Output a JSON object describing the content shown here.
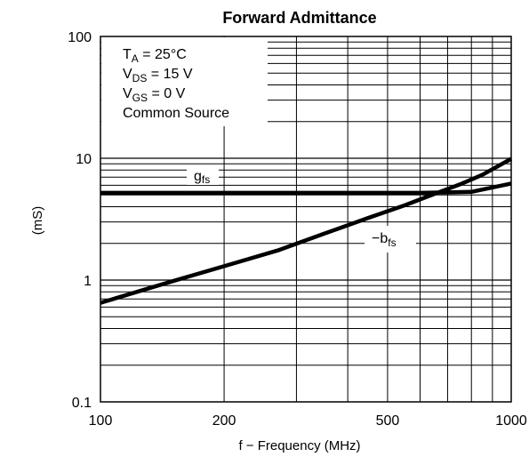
{
  "chart_data": {
    "type": "line",
    "title": "Forward Admittance",
    "xlabel": "f − Frequency (MHz)",
    "ylabel": "(mS)",
    "xscale": "log",
    "yscale": "log",
    "xlim": [
      100,
      1000
    ],
    "ylim": [
      0.1,
      100
    ],
    "xticks": [
      {
        "value": 100,
        "label": "100"
      },
      {
        "value": 200,
        "label": "200"
      },
      {
        "value": 500,
        "label": "500"
      },
      {
        "value": 1000,
        "label": "1000"
      }
    ],
    "yticks": [
      {
        "value": 0.1,
        "label": "0.1"
      },
      {
        "value": 1,
        "label": "1"
      },
      {
        "value": 10,
        "label": "10"
      },
      {
        "value": 100,
        "label": "100"
      }
    ],
    "grid": true,
    "conditions": {
      "ta": {
        "main": "T",
        "sub": "A",
        "rest": " = 25°C"
      },
      "vds": {
        "main": "V",
        "sub": "DS",
        "rest": " = 15 V"
      },
      "vgs": {
        "main": "V",
        "sub": "GS",
        "rest": " = 0 V"
      },
      "common": "Common Source"
    },
    "series": [
      {
        "key": "gfs",
        "label_main": "g",
        "label_sub": "fs",
        "x": [
          100,
          200,
          400,
          600,
          800,
          1000
        ],
        "y": [
          5.2,
          5.2,
          5.2,
          5.2,
          5.3,
          6.2
        ]
      },
      {
        "key": "bfs",
        "label_main": "−b",
        "label_sub": "fs",
        "x": [
          100,
          150,
          200,
          270,
          350,
          450,
          550,
          650,
          750,
          850,
          1000
        ],
        "y": [
          0.65,
          0.98,
          1.3,
          1.75,
          2.4,
          3.25,
          4.1,
          5.1,
          6.1,
          7.3,
          9.9
        ]
      }
    ],
    "line_color": "#000000"
  }
}
